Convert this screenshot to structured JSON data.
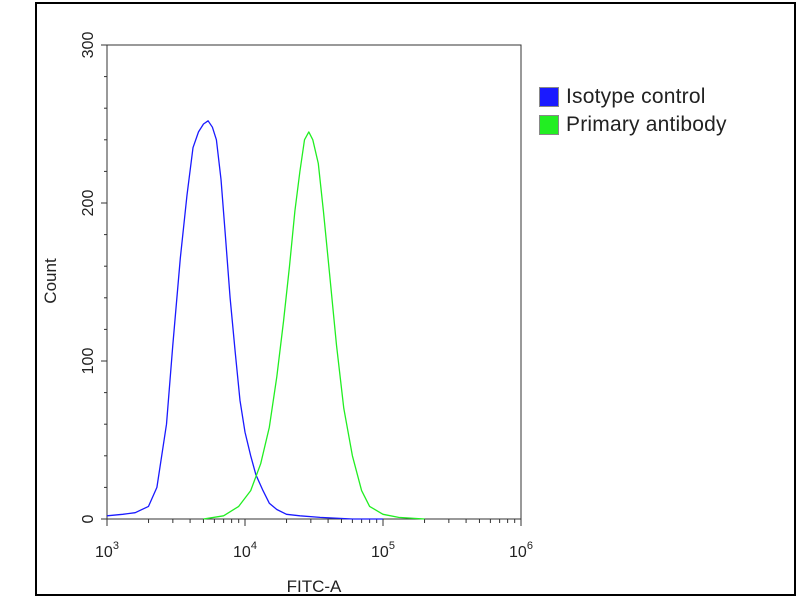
{
  "chart_data": {
    "type": "line",
    "xlabel": "FITC-A",
    "ylabel": "Count",
    "x_scale": "log",
    "xlim": [
      1000,
      1000000
    ],
    "ylim": [
      0,
      300
    ],
    "x_ticks": [
      {
        "value": 1000,
        "base": "10",
        "exp": "3"
      },
      {
        "value": 10000,
        "base": "10",
        "exp": "4"
      },
      {
        "value": 100000,
        "base": "10",
        "exp": "5"
      },
      {
        "value": 1000000,
        "base": "10",
        "exp": "6"
      }
    ],
    "y_ticks": [
      {
        "value": 0,
        "label": "0"
      },
      {
        "value": 100,
        "label": "100"
      },
      {
        "value": 200,
        "label": "200"
      },
      {
        "value": 300,
        "label": "300"
      }
    ],
    "legend_position": "top-right",
    "series": [
      {
        "name": "Isotype control",
        "color": "#1a1aff",
        "x": [
          1000,
          1300,
          1600,
          2000,
          2300,
          2700,
          3000,
          3400,
          3800,
          4200,
          4600,
          5000,
          5400,
          5800,
          6200,
          6700,
          7200,
          7800,
          8500,
          9200,
          10000,
          11000,
          12000,
          13500,
          15000,
          17000,
          20000,
          25000,
          35000,
          60000,
          100000
        ],
        "y": [
          2,
          3,
          4,
          8,
          20,
          60,
          110,
          165,
          205,
          235,
          245,
          250,
          252,
          248,
          240,
          215,
          180,
          140,
          105,
          75,
          55,
          40,
          28,
          18,
          10,
          6,
          3,
          2,
          1,
          0,
          0
        ]
      },
      {
        "name": "Primary antibody",
        "color": "#22ee22",
        "x": [
          5000,
          7000,
          9000,
          11000,
          13000,
          15000,
          17000,
          19000,
          21000,
          23000,
          25000,
          27000,
          29000,
          31000,
          34000,
          37000,
          41000,
          46000,
          52000,
          60000,
          70000,
          80000,
          100000,
          130000,
          200000
        ],
        "y": [
          0,
          2,
          8,
          18,
          35,
          58,
          90,
          125,
          160,
          195,
          220,
          240,
          245,
          240,
          225,
          195,
          155,
          110,
          70,
          40,
          18,
          8,
          3,
          1,
          0
        ]
      }
    ]
  }
}
